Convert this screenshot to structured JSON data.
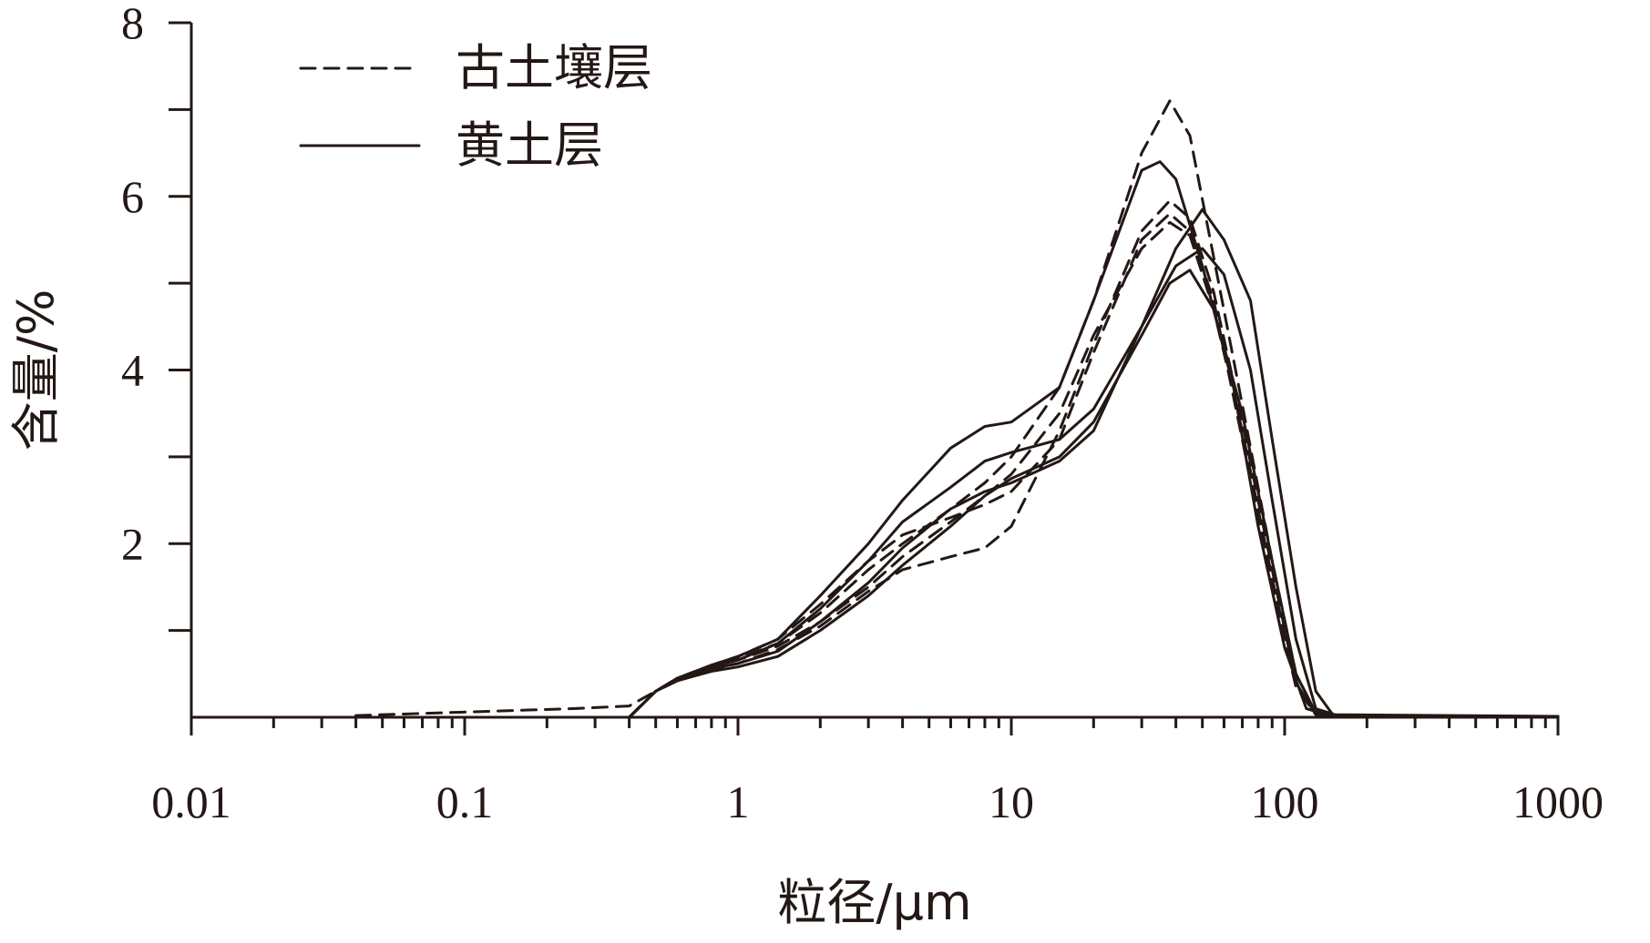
{
  "chart_data": {
    "type": "line",
    "title": "",
    "xlabel": "粒径/μm",
    "ylabel": "含量/%",
    "xscale": "log",
    "xlim": [
      0.01,
      1000
    ],
    "ylim": [
      0,
      8
    ],
    "xticks": [
      "0.01",
      "0.1",
      "1",
      "10",
      "100",
      "1000"
    ],
    "yticks": [
      "2",
      "4",
      "6",
      "8"
    ],
    "ytick_values": [
      2,
      4,
      6,
      8
    ],
    "grid": false,
    "legend_position": "top-left",
    "colors": {
      "ink": "#231815"
    },
    "legend": [
      {
        "label": "古土壤层",
        "style": "dashed"
      },
      {
        "label": "黄土层",
        "style": "solid"
      }
    ],
    "series": [
      {
        "group": "古土壤层",
        "style": "dashed",
        "points": [
          [
            0.04,
            0.02
          ],
          [
            0.1,
            0.06
          ],
          [
            0.25,
            0.1
          ],
          [
            0.4,
            0.13
          ],
          [
            0.5,
            0.3
          ],
          [
            0.6,
            0.45
          ],
          [
            0.8,
            0.6
          ],
          [
            1,
            0.68
          ],
          [
            1.4,
            0.85
          ],
          [
            2,
            1.2
          ],
          [
            3,
            1.7
          ],
          [
            4,
            2.0
          ],
          [
            6,
            2.4
          ],
          [
            8,
            2.7
          ],
          [
            10,
            3.0
          ],
          [
            15,
            3.8
          ],
          [
            20,
            4.8
          ],
          [
            30,
            6.5
          ],
          [
            38,
            7.1
          ],
          [
            45,
            6.7
          ],
          [
            55,
            5.3
          ],
          [
            70,
            3.6
          ],
          [
            90,
            1.8
          ],
          [
            110,
            0.5
          ],
          [
            130,
            0.05
          ],
          [
            160,
            0.01
          ],
          [
            1000,
            0.01
          ]
        ]
      },
      {
        "group": "古土壤层",
        "style": "dashed",
        "points": [
          [
            0.4,
            0.0
          ],
          [
            0.5,
            0.3
          ],
          [
            0.6,
            0.42
          ],
          [
            0.8,
            0.55
          ],
          [
            1,
            0.62
          ],
          [
            1.4,
            0.78
          ],
          [
            2,
            1.05
          ],
          [
            3,
            1.45
          ],
          [
            4,
            1.7
          ],
          [
            6,
            1.85
          ],
          [
            8,
            1.95
          ],
          [
            10,
            2.2
          ],
          [
            15,
            3.3
          ],
          [
            20,
            4.3
          ],
          [
            30,
            5.6
          ],
          [
            38,
            5.95
          ],
          [
            45,
            5.75
          ],
          [
            55,
            4.9
          ],
          [
            70,
            3.4
          ],
          [
            90,
            1.7
          ],
          [
            110,
            0.4
          ],
          [
            130,
            0.03
          ],
          [
            160,
            0.01
          ],
          [
            1000,
            0.01
          ]
        ]
      },
      {
        "group": "古土壤层",
        "style": "dashed",
        "points": [
          [
            0.4,
            0.0
          ],
          [
            0.5,
            0.3
          ],
          [
            0.6,
            0.45
          ],
          [
            0.8,
            0.6
          ],
          [
            1,
            0.7
          ],
          [
            1.4,
            0.9
          ],
          [
            2,
            1.3
          ],
          [
            3,
            1.8
          ],
          [
            4,
            2.1
          ],
          [
            6,
            2.3
          ],
          [
            8,
            2.45
          ],
          [
            10,
            2.6
          ],
          [
            15,
            3.2
          ],
          [
            20,
            4.2
          ],
          [
            30,
            5.5
          ],
          [
            38,
            5.8
          ],
          [
            45,
            5.6
          ],
          [
            55,
            4.8
          ],
          [
            70,
            3.2
          ],
          [
            90,
            1.5
          ],
          [
            110,
            0.35
          ],
          [
            130,
            0.03
          ],
          [
            160,
            0.01
          ],
          [
            1000,
            0.01
          ]
        ]
      },
      {
        "group": "古土壤层",
        "style": "dashed",
        "points": [
          [
            0.4,
            0.0
          ],
          [
            0.5,
            0.3
          ],
          [
            0.6,
            0.45
          ],
          [
            0.8,
            0.58
          ],
          [
            1,
            0.66
          ],
          [
            1.4,
            0.82
          ],
          [
            2,
            1.1
          ],
          [
            3,
            1.5
          ],
          [
            4,
            1.85
          ],
          [
            6,
            2.25
          ],
          [
            8,
            2.55
          ],
          [
            10,
            2.8
          ],
          [
            15,
            3.5
          ],
          [
            20,
            4.4
          ],
          [
            30,
            5.4
          ],
          [
            38,
            5.7
          ],
          [
            45,
            5.55
          ],
          [
            55,
            4.7
          ],
          [
            70,
            3.3
          ],
          [
            90,
            1.6
          ],
          [
            110,
            0.4
          ],
          [
            130,
            0.03
          ],
          [
            160,
            0.01
          ],
          [
            1000,
            0.01
          ]
        ]
      },
      {
        "group": "黄土层",
        "style": "solid",
        "points": [
          [
            0.4,
            0.0
          ],
          [
            0.5,
            0.3
          ],
          [
            0.6,
            0.45
          ],
          [
            0.8,
            0.6
          ],
          [
            1,
            0.7
          ],
          [
            1.4,
            0.9
          ],
          [
            2,
            1.4
          ],
          [
            3,
            2.0
          ],
          [
            4,
            2.5
          ],
          [
            6,
            3.1
          ],
          [
            8,
            3.35
          ],
          [
            10,
            3.4
          ],
          [
            15,
            3.8
          ],
          [
            20,
            4.8
          ],
          [
            30,
            6.3
          ],
          [
            35,
            6.4
          ],
          [
            40,
            6.2
          ],
          [
            50,
            5.2
          ],
          [
            65,
            3.8
          ],
          [
            80,
            2.2
          ],
          [
            100,
            0.8
          ],
          [
            120,
            0.1
          ],
          [
            150,
            0.01
          ],
          [
            1000,
            0.01
          ]
        ]
      },
      {
        "group": "黄土层",
        "style": "solid",
        "points": [
          [
            0.4,
            0.0
          ],
          [
            0.5,
            0.3
          ],
          [
            0.6,
            0.45
          ],
          [
            0.8,
            0.58
          ],
          [
            1,
            0.66
          ],
          [
            1.4,
            0.85
          ],
          [
            2,
            1.25
          ],
          [
            3,
            1.8
          ],
          [
            4,
            2.25
          ],
          [
            6,
            2.65
          ],
          [
            8,
            2.95
          ],
          [
            10,
            3.05
          ],
          [
            15,
            3.2
          ],
          [
            20,
            3.55
          ],
          [
            30,
            4.5
          ],
          [
            40,
            5.4
          ],
          [
            50,
            5.85
          ],
          [
            60,
            5.5
          ],
          [
            75,
            4.8
          ],
          [
            90,
            3.2
          ],
          [
            110,
            1.5
          ],
          [
            130,
            0.3
          ],
          [
            150,
            0.03
          ],
          [
            1000,
            0.01
          ]
        ]
      },
      {
        "group": "黄土层",
        "style": "solid",
        "points": [
          [
            0.4,
            0.0
          ],
          [
            0.5,
            0.3
          ],
          [
            0.6,
            0.42
          ],
          [
            0.8,
            0.53
          ],
          [
            1,
            0.58
          ],
          [
            1.4,
            0.7
          ],
          [
            2,
            1.0
          ],
          [
            3,
            1.4
          ],
          [
            4,
            1.75
          ],
          [
            6,
            2.2
          ],
          [
            8,
            2.55
          ],
          [
            10,
            2.75
          ],
          [
            15,
            3.0
          ],
          [
            20,
            3.4
          ],
          [
            30,
            4.4
          ],
          [
            38,
            5.0
          ],
          [
            45,
            5.15
          ],
          [
            55,
            4.7
          ],
          [
            70,
            3.5
          ],
          [
            90,
            1.8
          ],
          [
            110,
            0.5
          ],
          [
            130,
            0.05
          ],
          [
            160,
            0.01
          ],
          [
            1000,
            0.01
          ]
        ]
      },
      {
        "group": "黄土层",
        "style": "solid",
        "points": [
          [
            0.4,
            0.0
          ],
          [
            0.5,
            0.3
          ],
          [
            0.6,
            0.44
          ],
          [
            0.8,
            0.56
          ],
          [
            1,
            0.62
          ],
          [
            1.4,
            0.76
          ],
          [
            2,
            1.1
          ],
          [
            3,
            1.55
          ],
          [
            4,
            1.95
          ],
          [
            6,
            2.4
          ],
          [
            8,
            2.6
          ],
          [
            10,
            2.7
          ],
          [
            15,
            2.95
          ],
          [
            20,
            3.3
          ],
          [
            30,
            4.5
          ],
          [
            40,
            5.2
          ],
          [
            50,
            5.4
          ],
          [
            60,
            5.1
          ],
          [
            75,
            4.0
          ],
          [
            90,
            2.5
          ],
          [
            110,
            0.9
          ],
          [
            130,
            0.1
          ],
          [
            160,
            0.01
          ],
          [
            1000,
            0.01
          ]
        ]
      }
    ]
  }
}
